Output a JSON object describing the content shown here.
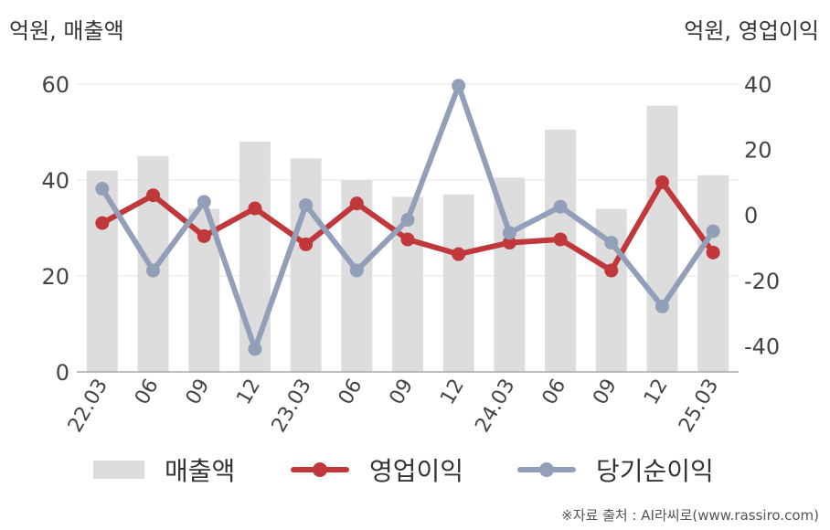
{
  "units": {
    "left": "억원, 매출액",
    "right": "억원, 영업이익"
  },
  "source": "※자료 출처 : AI라씨로(www.rassiro.com)",
  "colors": {
    "bar": "#dddddd",
    "operating": "#c0383b",
    "net": "#929fb8",
    "grid": "#e6e6e6",
    "axis": "#aaaaaa"
  },
  "legend": [
    {
      "label": "매출액",
      "kind": "bar",
      "color": "#dddddd"
    },
    {
      "label": "영업이익",
      "kind": "line",
      "color": "#c0383b"
    },
    {
      "label": "당기순이익",
      "kind": "line",
      "color": "#929fb8"
    }
  ],
  "chart_data": {
    "type": "bar",
    "categories": [
      "22.03",
      "06",
      "09",
      "12",
      "23.03",
      "06",
      "09",
      "12",
      "24.03",
      "06",
      "09",
      "12",
      "25.03"
    ],
    "left_axis": {
      "ylim": [
        0,
        60
      ],
      "ticks": [
        0,
        20,
        40,
        60
      ]
    },
    "right_axis": {
      "ylim": [
        -48,
        40
      ],
      "ticks": [
        -40,
        -20,
        0,
        20,
        40
      ]
    },
    "grid": true,
    "legend_position": "bottom",
    "series": [
      {
        "name": "매출액",
        "type": "bar",
        "axis": "left",
        "values": [
          42,
          45,
          34,
          48,
          44.5,
          40,
          36.5,
          37,
          40.5,
          50.5,
          34,
          55.5,
          41
        ]
      },
      {
        "name": "영업이익",
        "type": "line",
        "axis": "right",
        "values": [
          -2.5,
          6,
          -6.5,
          2,
          -9,
          3.5,
          -7.5,
          -12,
          -8.5,
          -7.5,
          -17,
          10,
          -11.5
        ]
      },
      {
        "name": "당기순이익",
        "type": "line",
        "axis": "right",
        "values": [
          8,
          -17,
          4,
          -41,
          3,
          -17,
          -1.5,
          39.5,
          -5.5,
          2.5,
          -8.5,
          -28,
          -5
        ]
      }
    ]
  }
}
